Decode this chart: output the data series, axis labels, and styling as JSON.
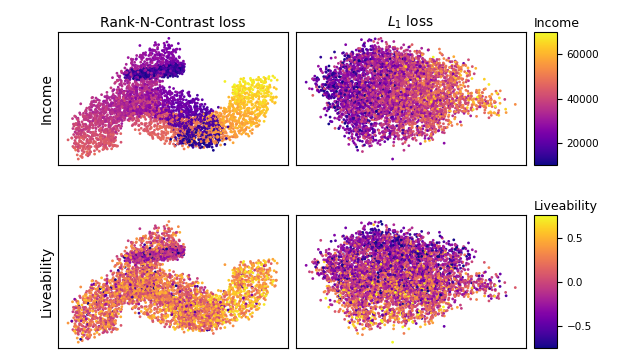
{
  "title_left": "Rank-N-Contrast loss",
  "title_right": "$L_1$ loss",
  "ylabel_top": "Income",
  "ylabel_bottom": "Liveability",
  "colorbar_top_label": "Income",
  "colorbar_bottom_label": "Liveability",
  "income_ticks": [
    20000,
    40000,
    60000
  ],
  "income_vmin": 10000,
  "income_vmax": 70000,
  "liveability_ticks": [
    -0.5,
    0.0,
    0.5
  ],
  "liveability_vmin": -0.75,
  "liveability_vmax": 0.75,
  "n_points": 5000,
  "marker_size": 4.0,
  "alpha": 1.0,
  "cmap_income": "plasma",
  "cmap_liveability": "plasma",
  "background_color": "#ffffff"
}
